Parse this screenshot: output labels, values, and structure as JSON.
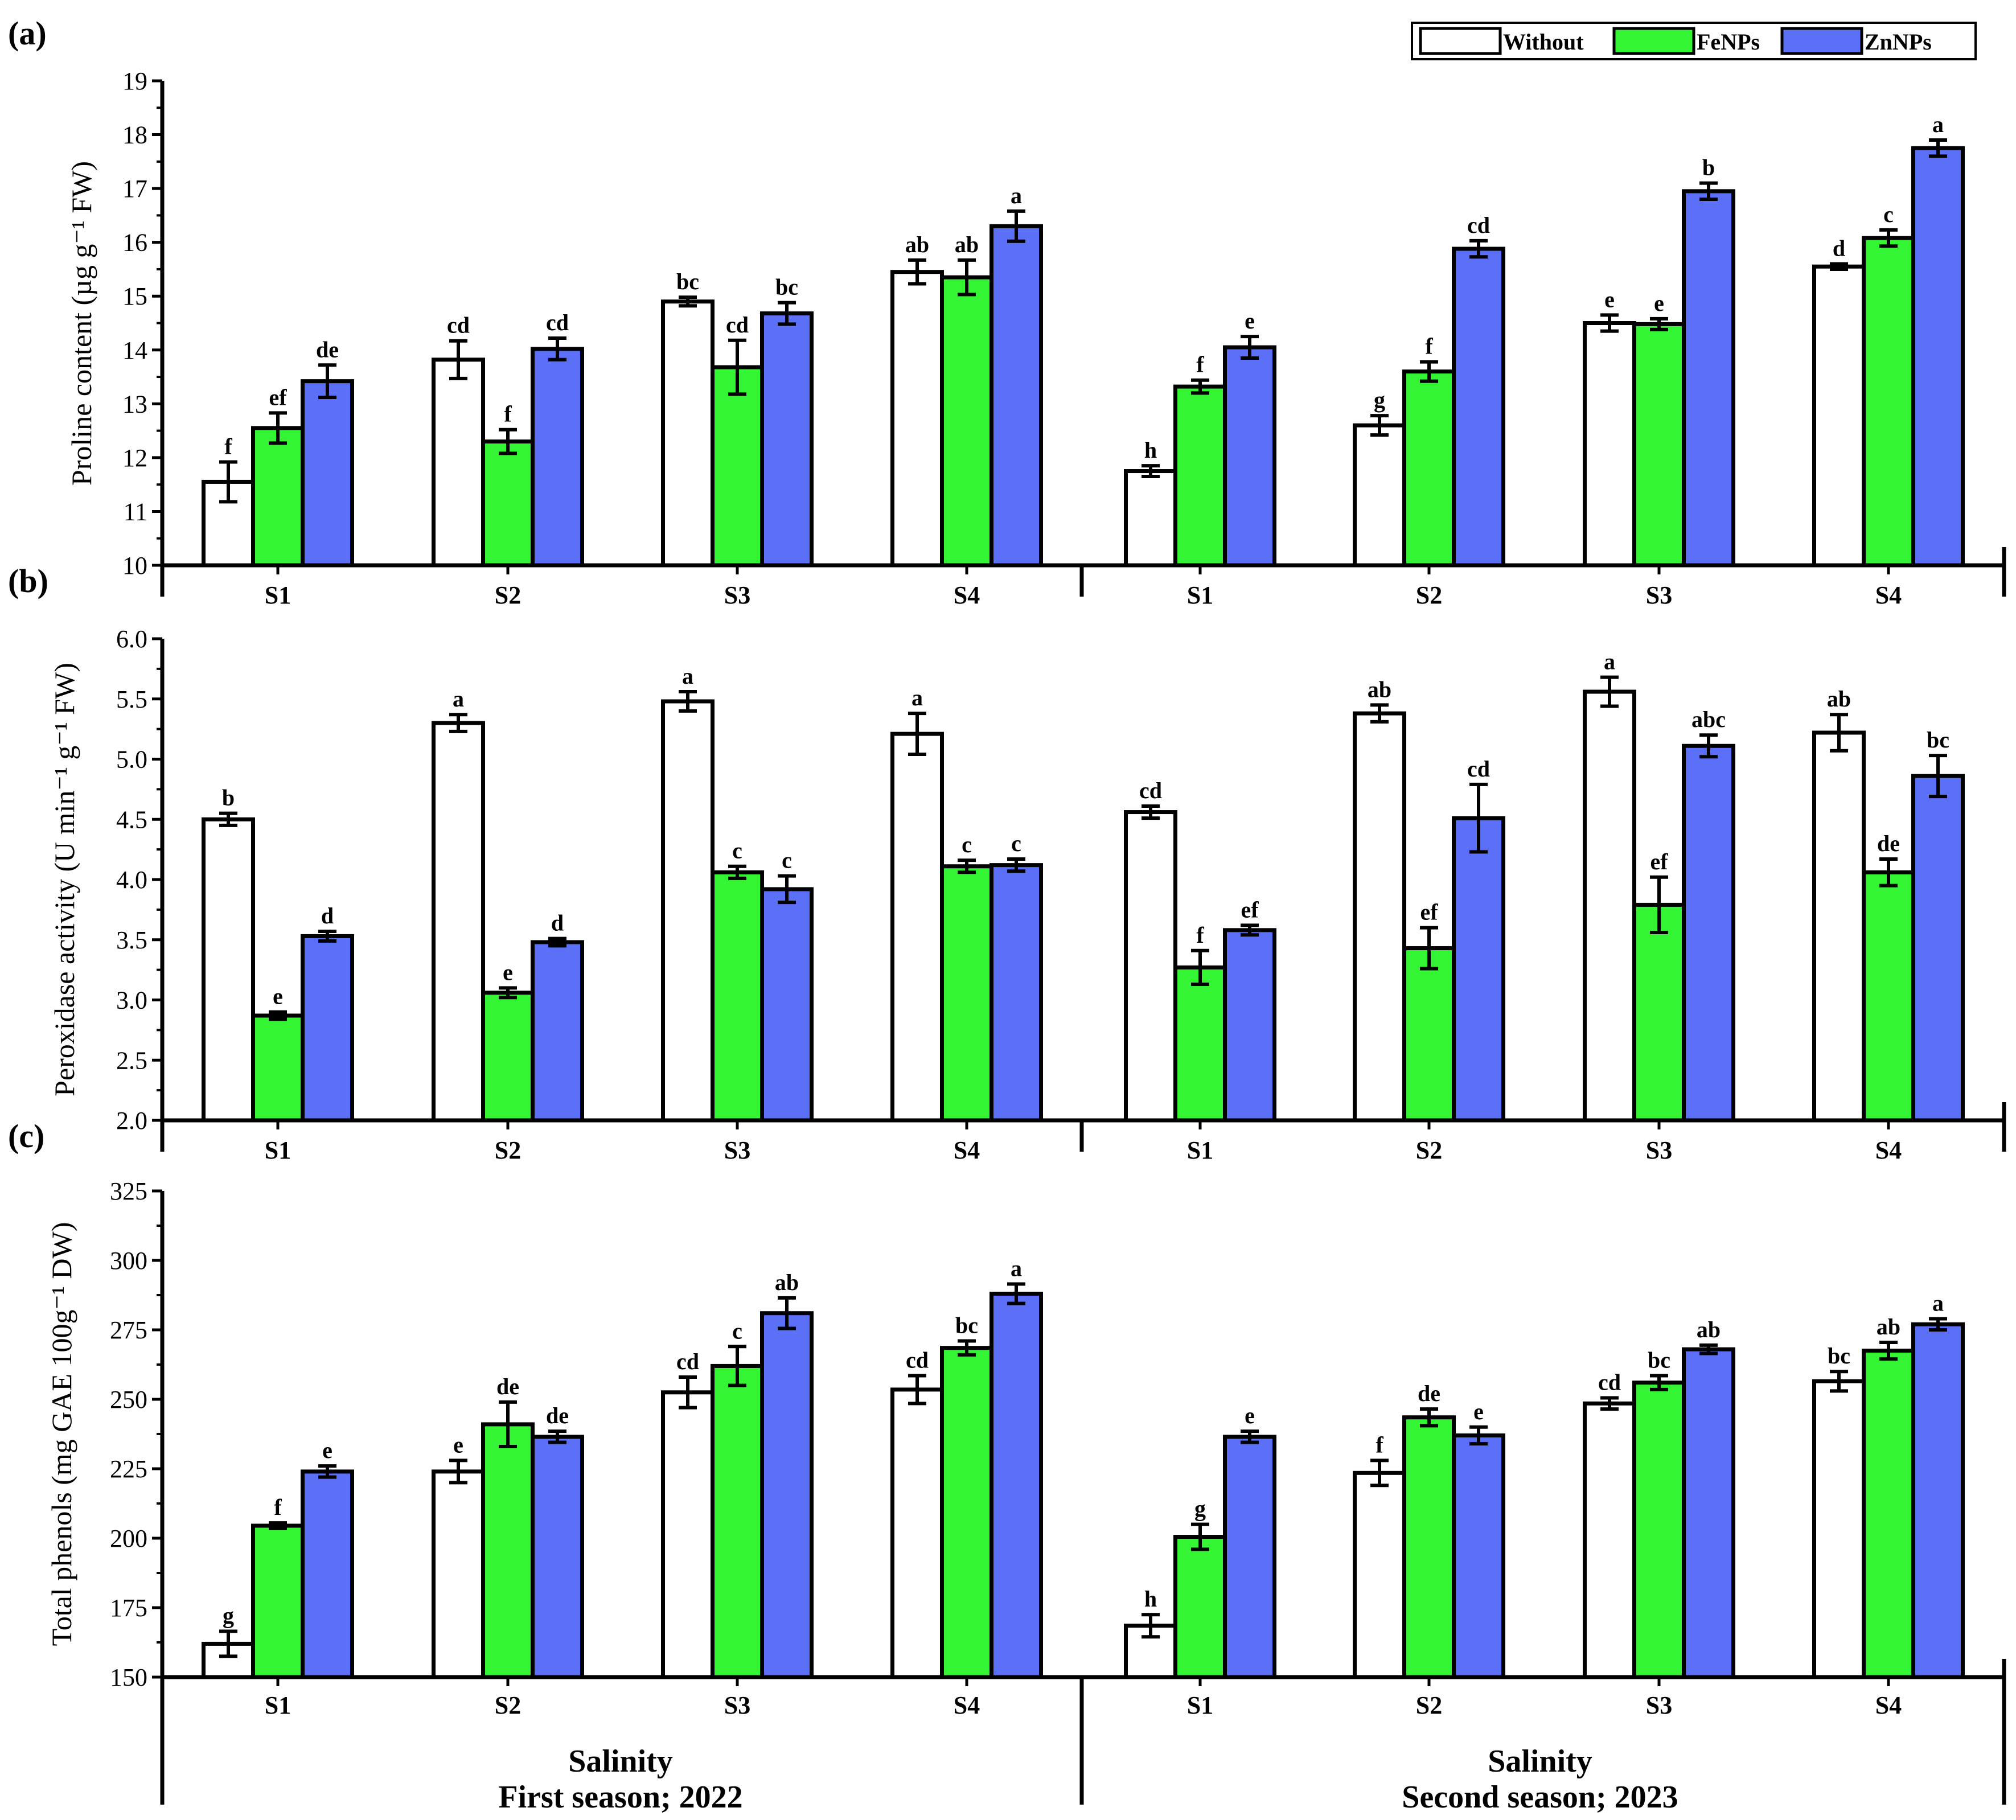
{
  "colors": {
    "without": "#ffffff",
    "fenps": "#33f533",
    "znnps": "#5b6ff7",
    "axis": "#000000"
  },
  "legend": {
    "items": [
      "Without",
      "FeNPs",
      "ZnNPs"
    ]
  },
  "x_axis": {
    "title": "Salinity",
    "seasons": [
      "First season; 2022",
      "Second season; 2023"
    ]
  },
  "chart_data": [
    {
      "panel": "(a)",
      "type": "bar",
      "ylabel": "Proline content (µg g⁻¹ FW)",
      "ylim": [
        10,
        19
      ],
      "yticks": [
        10,
        11,
        12,
        13,
        14,
        15,
        16,
        17,
        18,
        19
      ],
      "categories": [
        "S1",
        "S2",
        "S3",
        "S4",
        "S1",
        "S2",
        "S3",
        "S4"
      ],
      "series": [
        {
          "name": "Without",
          "values": [
            11.55,
            13.82,
            14.9,
            15.45,
            11.75,
            12.6,
            14.5,
            15.55
          ],
          "errors": [
            0.37,
            0.35,
            0.08,
            0.22,
            0.1,
            0.18,
            0.15,
            0.05
          ],
          "letters": [
            "f",
            "cd",
            "bc",
            "ab",
            "h",
            "g",
            "e",
            "d"
          ]
        },
        {
          "name": "FeNPs",
          "values": [
            12.55,
            12.3,
            13.68,
            15.35,
            13.32,
            13.6,
            14.48,
            16.08
          ],
          "errors": [
            0.28,
            0.22,
            0.5,
            0.32,
            0.12,
            0.18,
            0.1,
            0.15
          ],
          "letters": [
            "ef",
            "f",
            "cd",
            "ab",
            "f",
            "f",
            "e",
            "c"
          ]
        },
        {
          "name": "ZnNPs",
          "values": [
            13.42,
            14.02,
            14.68,
            16.3,
            14.05,
            15.88,
            16.95,
            17.75
          ],
          "errors": [
            0.3,
            0.2,
            0.2,
            0.28,
            0.2,
            0.15,
            0.15,
            0.15
          ],
          "letters": [
            "de",
            "cd",
            "bc",
            "a",
            "e",
            "cd",
            "b",
            "a"
          ]
        }
      ]
    },
    {
      "panel": "(b)",
      "type": "bar",
      "ylabel": "Peroxidase activity (U min⁻¹ g⁻¹ FW)",
      "ylim": [
        2.0,
        6.0
      ],
      "yticks": [
        "2.0",
        "2.5",
        "3.0",
        "3.5",
        "4.0",
        "4.5",
        "5.0",
        "5.5",
        "6.0"
      ],
      "categories": [
        "S1",
        "S2",
        "S3",
        "S4",
        "S1",
        "S2",
        "S3",
        "S4"
      ],
      "series": [
        {
          "name": "Without",
          "values": [
            4.5,
            5.3,
            5.48,
            5.21,
            4.56,
            5.38,
            5.56,
            5.22
          ],
          "errors": [
            0.05,
            0.07,
            0.08,
            0.17,
            0.05,
            0.07,
            0.12,
            0.15
          ],
          "letters": [
            "b",
            "a",
            "a",
            "a",
            "cd",
            "ab",
            "a",
            "ab"
          ]
        },
        {
          "name": "FeNPs",
          "values": [
            2.87,
            3.06,
            4.06,
            4.11,
            3.27,
            3.43,
            3.79,
            4.06
          ],
          "errors": [
            0.03,
            0.04,
            0.05,
            0.05,
            0.14,
            0.17,
            0.23,
            0.11
          ],
          "letters": [
            "e",
            "e",
            "c",
            "c",
            "f",
            "ef",
            "ef",
            "de"
          ]
        },
        {
          "name": "ZnNPs",
          "values": [
            3.53,
            3.48,
            3.92,
            4.12,
            3.58,
            4.51,
            5.11,
            4.86
          ],
          "errors": [
            0.04,
            0.03,
            0.11,
            0.05,
            0.04,
            0.28,
            0.09,
            0.17
          ],
          "letters": [
            "d",
            "d",
            "c",
            "c",
            "ef",
            "cd",
            "abc",
            "bc"
          ]
        }
      ]
    },
    {
      "panel": "(c)",
      "type": "bar",
      "ylabel": "Total phenols (mg GAE 100g⁻¹ DW)",
      "ylim": [
        150,
        325
      ],
      "yticks": [
        150,
        175,
        200,
        225,
        250,
        275,
        300,
        325
      ],
      "categories": [
        "S1",
        "S2",
        "S3",
        "S4",
        "S1",
        "S2",
        "S3",
        "S4"
      ],
      "series": [
        {
          "name": "Without",
          "values": [
            162,
            224,
            252.5,
            253.5,
            168.5,
            223.5,
            248.5,
            256.5
          ],
          "errors": [
            4.5,
            4,
            5.5,
            5,
            4,
            4.5,
            2,
            3.5
          ],
          "letters": [
            "g",
            "e",
            "cd",
            "cd",
            "h",
            "f",
            "cd",
            "bc"
          ]
        },
        {
          "name": "FeNPs",
          "values": [
            204.5,
            241,
            262,
            268.5,
            200.5,
            243.5,
            256,
            267.5
          ],
          "errors": [
            1,
            8,
            7,
            2.5,
            4.5,
            3,
            2.5,
            3
          ],
          "letters": [
            "f",
            "de",
            "c",
            "bc",
            "g",
            "de",
            "bc",
            "ab"
          ]
        },
        {
          "name": "ZnNPs",
          "values": [
            224,
            236.5,
            281,
            288,
            236.5,
            237,
            268,
            277
          ],
          "errors": [
            2,
            2,
            5.5,
            3.5,
            2,
            3,
            1.5,
            2
          ],
          "letters": [
            "e",
            "de",
            "ab",
            "a",
            "e",
            "e",
            "ab",
            "a"
          ]
        }
      ]
    }
  ]
}
